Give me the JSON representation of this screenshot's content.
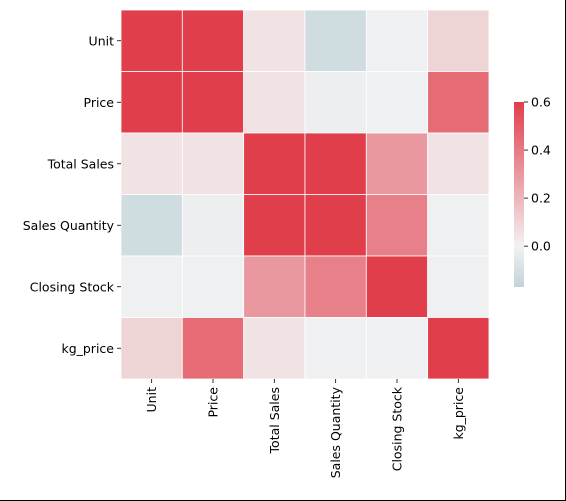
{
  "chart_data": {
    "type": "heatmap",
    "title": "",
    "xlabel": "",
    "ylabel": "",
    "categories": [
      "Unit",
      "Price",
      "Total Sales",
      "Sales Quantity",
      "Closing Stock",
      "kg_price"
    ],
    "values": [
      [
        1.0,
        0.95,
        0.05,
        -0.12,
        -0.01,
        0.1
      ],
      [
        0.95,
        1.0,
        0.05,
        -0.02,
        -0.01,
        0.45
      ],
      [
        0.05,
        0.05,
        1.0,
        0.98,
        0.3,
        0.05
      ],
      [
        -0.12,
        -0.02,
        0.98,
        1.0,
        0.38,
        -0.01
      ],
      [
        -0.01,
        -0.01,
        0.3,
        0.38,
        1.0,
        -0.01
      ],
      [
        0.1,
        0.45,
        0.05,
        -0.01,
        -0.01,
        1.0
      ]
    ],
    "colorbar": {
      "vmin": -0.17,
      "vmax": 0.6,
      "ticks": [
        0.0,
        0.2,
        0.4,
        0.6
      ],
      "tick_labels": [
        "0.0",
        "0.2",
        "0.4",
        "0.6"
      ],
      "colors": {
        "low": "#c1d3d9",
        "mid": "#f2f2f2",
        "high": "#e13e4b"
      }
    },
    "grid": true,
    "cell_separator_color": "#ffffff"
  }
}
